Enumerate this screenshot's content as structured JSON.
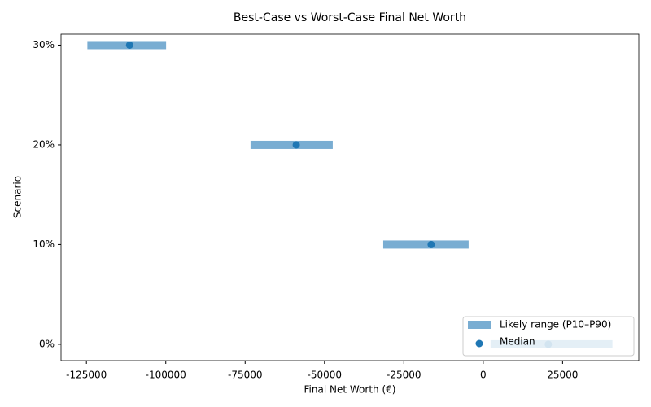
{
  "chart_data": {
    "type": "range",
    "title": "Best-Case vs Worst-Case Final Net Worth",
    "x_label": "Final Net Worth (€)",
    "y_label": "Scenario",
    "categories": [
      "0%",
      "10%",
      "20%",
      "30%"
    ],
    "series": [
      {
        "name": "Likely range (P10–P90)",
        "color": "#1f77b4",
        "low": [
          2300,
          -31500,
          -73300,
          -124700
        ],
        "high": [
          40700,
          -4600,
          -47400,
          -99900
        ]
      },
      {
        "name": "Median",
        "color": "#1f77b4",
        "values": [
          20500,
          -16400,
          -58900,
          -111400
        ]
      }
    ],
    "xlim": [
      -133000,
      49000
    ],
    "xticks": [
      -125000,
      -100000,
      -75000,
      -50000,
      -25000,
      0,
      25000
    ],
    "legend": "lower right"
  }
}
